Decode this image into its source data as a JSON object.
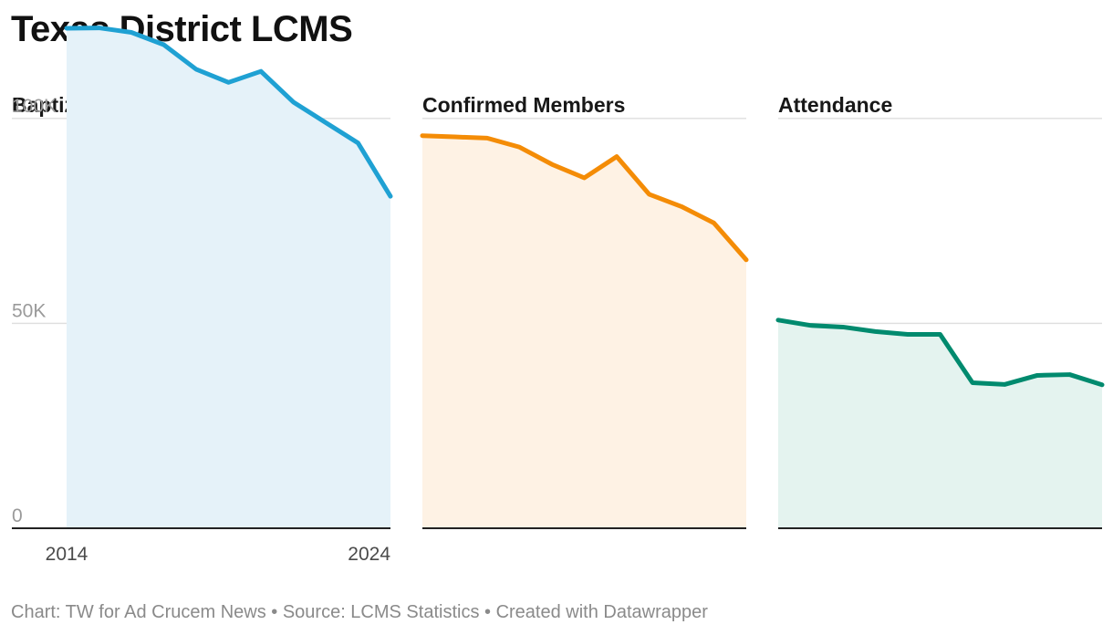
{
  "title": "Texas District LCMS",
  "footer": {
    "chart": "Chart: TW for Ad Crucem News",
    "source": "Source: LCMS Statistics",
    "created": "Created with Datawrapper",
    "separator": " • "
  },
  "chart_data": {
    "type": "area",
    "x": [
      2014,
      2015,
      2016,
      2017,
      2018,
      2019,
      2020,
      2021,
      2022,
      2023,
      2024
    ],
    "ylim": [
      0,
      120000
    ],
    "y_ticks": [
      0,
      50000,
      100000
    ],
    "y_tick_labels": [
      "0",
      "50K",
      "100K"
    ],
    "x_tick_labels": [
      "2014",
      "2024"
    ],
    "series": [
      {
        "name": "Baptized Members",
        "color": "#1fa1d3",
        "fill": "#e5f2f9",
        "values": [
          122000,
          122100,
          121000,
          118000,
          112000,
          108800,
          111500,
          104000,
          99000,
          94000,
          81000
        ]
      },
      {
        "name": "Confirmed Members",
        "color": "#f48c06",
        "fill": "#fef2e4",
        "values": [
          95800,
          95500,
          95200,
          93000,
          88800,
          85500,
          90700,
          81500,
          78500,
          74500,
          65500
        ]
      },
      {
        "name": "Attendance",
        "color": "#008a6e",
        "fill": "#e4f3ef",
        "values": [
          50800,
          49500,
          49100,
          48000,
          47300,
          47300,
          35500,
          35100,
          37300,
          37500,
          35000
        ]
      }
    ]
  }
}
